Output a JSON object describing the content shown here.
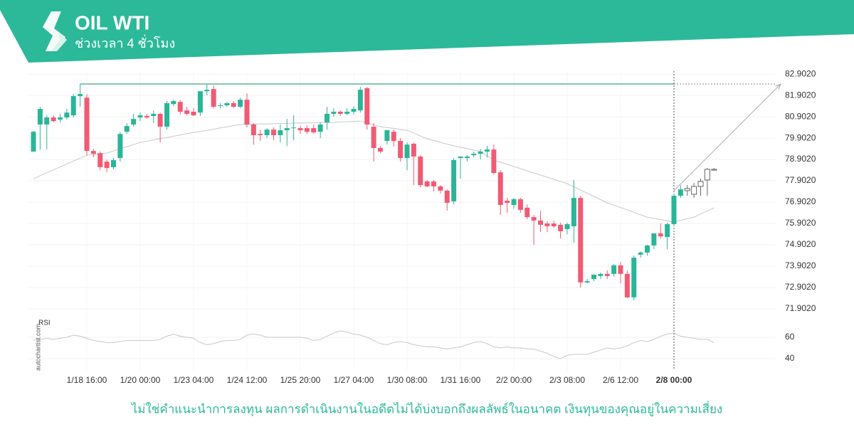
{
  "chart_data": {
    "type": "candlestick",
    "title": "OIL WTI",
    "subtitle": "ช่วงเวลา 4 ชั่วโมง",
    "watermark": "autochartist.com",
    "disclaimer": "ไม่ใช่คำแนะนำการลงทุน ผลการดำเนินงานในอดีตไม่ได้บ่งบอกถึงผลลัพธ์ในอนาคต เงินทุนของคุณอยู่ในความเสี่ยง",
    "categories": [
      null,
      null,
      null,
      null,
      null,
      null,
      null,
      null,
      "1/18 16:00",
      null,
      null,
      null,
      null,
      null,
      null,
      null,
      "1/20 00:00",
      null,
      null,
      null,
      null,
      null,
      null,
      null,
      "1/23 04:00",
      null,
      null,
      null,
      null,
      null,
      null,
      null,
      "1/24 12:00",
      null,
      null,
      null,
      null,
      null,
      null,
      null,
      "1/25 20:00",
      null,
      null,
      null,
      null,
      null,
      null,
      null,
      "1/27 04:00",
      null,
      null,
      null,
      null,
      null,
      null,
      null,
      "1/30 08:00",
      null,
      null,
      null,
      null,
      null,
      null,
      null,
      "1/31 16:00",
      null,
      null,
      null,
      null,
      null,
      null,
      null,
      "2/2 00:00",
      null,
      null,
      null,
      null,
      null,
      null,
      null,
      "2/3 08:00",
      null,
      null,
      null,
      null,
      null,
      null,
      null,
      "2/6 12:00",
      null,
      null,
      null,
      null,
      null,
      null,
      null,
      "2/8 00:00",
      null,
      null,
      null,
      null,
      null,
      null
    ],
    "candles": [
      [
        79.27,
        80.24,
        79.27,
        80.2
      ],
      [
        80.54,
        81.37,
        79.37,
        81.27
      ],
      [
        80.54,
        80.97,
        79.37,
        80.87
      ],
      [
        80.87,
        80.97,
        80.64,
        80.7
      ],
      [
        80.77,
        81.04,
        80.64,
        80.87
      ],
      [
        80.87,
        81.27,
        80.77,
        81.1
      ],
      [
        80.97,
        81.97,
        80.87,
        81.87
      ],
      [
        81.87,
        82.44,
        81.37,
        81.97
      ],
      [
        81.8,
        81.97,
        79.1,
        79.3
      ],
      [
        79.3,
        79.4,
        79.0,
        79.17
      ],
      [
        79.2,
        79.27,
        78.4,
        78.54
      ],
      [
        78.8,
        78.9,
        78.3,
        78.5
      ],
      [
        78.54,
        78.97,
        78.44,
        78.87
      ],
      [
        78.97,
        80.2,
        78.8,
        80.1
      ],
      [
        80.2,
        80.6,
        80.1,
        80.47
      ],
      [
        80.54,
        81.04,
        80.44,
        80.8
      ],
      [
        80.87,
        81.1,
        80.7,
        80.97
      ],
      [
        80.94,
        81.04,
        80.8,
        80.87
      ],
      [
        80.94,
        81.2,
        80.6,
        81.04
      ],
      [
        81.04,
        81.1,
        79.7,
        80.44
      ],
      [
        80.44,
        81.64,
        80.3,
        81.54
      ],
      [
        81.5,
        81.7,
        81.4,
        81.64
      ],
      [
        81.6,
        81.7,
        81.0,
        81.14
      ],
      [
        81.2,
        81.37,
        80.97,
        81.04
      ],
      [
        81.14,
        81.3,
        80.94,
        80.97
      ],
      [
        81.1,
        82.1,
        80.94,
        82.1
      ],
      [
        82.1,
        82.44,
        81.9,
        82.17
      ],
      [
        82.2,
        82.37,
        81.3,
        81.37
      ],
      [
        81.44,
        81.54,
        81.3,
        81.44
      ],
      [
        81.44,
        81.6,
        81.37,
        81.54
      ],
      [
        81.54,
        81.64,
        81.3,
        81.37
      ],
      [
        81.37,
        81.8,
        81.3,
        81.7
      ],
      [
        81.7,
        82.0,
        80.4,
        80.54
      ],
      [
        80.54,
        80.6,
        79.6,
        80.04
      ],
      [
        80.1,
        80.3,
        79.77,
        80.04
      ],
      [
        80.04,
        80.37,
        79.9,
        80.3
      ],
      [
        80.3,
        80.4,
        79.8,
        80.04
      ],
      [
        80.04,
        80.54,
        79.7,
        80.27
      ],
      [
        80.27,
        80.8,
        79.54,
        80.37
      ],
      [
        80.37,
        80.97,
        79.8,
        80.4
      ],
      [
        80.37,
        80.47,
        80.1,
        80.27
      ],
      [
        80.37,
        80.5,
        80.1,
        80.2
      ],
      [
        80.37,
        80.54,
        80.1,
        80.17
      ],
      [
        80.2,
        80.64,
        79.9,
        80.54
      ],
      [
        80.64,
        81.37,
        80.3,
        81.04
      ],
      [
        81.04,
        81.3,
        80.9,
        81.14
      ],
      [
        81.14,
        81.2,
        80.94,
        81.04
      ],
      [
        81.04,
        81.3,
        80.97,
        81.14
      ],
      [
        81.14,
        81.4,
        81.0,
        81.27
      ],
      [
        81.2,
        82.3,
        81.1,
        82.17
      ],
      [
        82.24,
        82.3,
        80.3,
        80.54
      ],
      [
        80.44,
        80.6,
        78.8,
        79.44
      ],
      [
        79.44,
        79.54,
        79.2,
        79.27
      ],
      [
        79.77,
        80.3,
        79.6,
        80.27
      ],
      [
        80.2,
        80.3,
        79.5,
        79.77
      ],
      [
        79.77,
        79.9,
        78.8,
        78.97
      ],
      [
        78.97,
        79.7,
        78.4,
        79.6
      ],
      [
        79.64,
        79.7,
        77.7,
        79.04
      ],
      [
        79.04,
        79.1,
        77.6,
        77.7
      ],
      [
        77.87,
        77.94,
        77.6,
        77.64
      ],
      [
        77.87,
        77.94,
        77.4,
        77.64
      ],
      [
        77.64,
        77.7,
        77.3,
        77.44
      ],
      [
        77.44,
        77.5,
        76.5,
        76.87
      ],
      [
        76.94,
        78.97,
        76.8,
        78.87
      ],
      [
        78.97,
        79.04,
        78.0,
        79.04
      ],
      [
        78.97,
        79.1,
        78.8,
        79.04
      ],
      [
        79.1,
        79.27,
        79.0,
        79.17
      ],
      [
        79.17,
        79.4,
        78.9,
        79.27
      ],
      [
        79.27,
        79.54,
        79.0,
        79.37
      ],
      [
        79.37,
        79.6,
        78.2,
        78.27
      ],
      [
        78.3,
        78.4,
        76.3,
        76.77
      ],
      [
        76.97,
        77.1,
        76.4,
        76.87
      ],
      [
        76.77,
        77.1,
        76.6,
        77.04
      ],
      [
        77.04,
        77.1,
        76.4,
        76.54
      ],
      [
        76.64,
        76.8,
        76.1,
        76.2
      ],
      [
        76.2,
        76.3,
        74.9,
        76.04
      ],
      [
        76.04,
        76.5,
        75.5,
        75.84
      ],
      [
        75.9,
        76.0,
        75.5,
        75.77
      ],
      [
        75.9,
        76.04,
        75.7,
        75.77
      ],
      [
        75.84,
        75.94,
        75.2,
        75.54
      ],
      [
        75.64,
        75.94,
        75.4,
        75.87
      ],
      [
        75.77,
        77.94,
        75.0,
        77.1
      ],
      [
        77.1,
        77.2,
        72.9,
        73.14
      ],
      [
        73.14,
        73.3,
        73.1,
        73.2
      ],
      [
        73.3,
        73.54,
        73.2,
        73.5
      ],
      [
        73.44,
        73.6,
        73.3,
        73.54
      ],
      [
        73.54,
        73.7,
        73.3,
        73.44
      ],
      [
        73.54,
        74.0,
        73.4,
        73.94
      ],
      [
        73.94,
        74.1,
        73.1,
        73.54
      ],
      [
        73.54,
        73.7,
        72.4,
        72.44
      ],
      [
        72.44,
        74.4,
        72.3,
        74.3
      ],
      [
        74.44,
        74.6,
        74.3,
        74.54
      ],
      [
        74.54,
        74.9,
        74.4,
        74.87
      ],
      [
        74.87,
        75.44,
        74.7,
        75.44
      ],
      [
        75.44,
        75.9,
        75.2,
        75.3
      ],
      [
        75.27,
        75.94,
        74.7,
        75.87
      ],
      [
        75.87,
        77.3,
        75.8,
        77.2
      ],
      [
        77.2,
        77.7,
        77.1,
        77.5
      ],
      [
        77.44,
        77.7,
        77.2,
        77.54
      ],
      [
        77.27,
        77.8,
        77.1,
        77.64
      ],
      [
        77.64,
        78.0,
        77.2,
        77.87
      ],
      [
        77.94,
        78.5,
        77.2,
        78.44
      ],
      [
        78.44,
        78.5,
        78.4,
        78.4
      ]
    ],
    "up_color": "#2bb598",
    "down_color": "#f25a73",
    "hollow_from": 98,
    "ylim": [
      71.7,
      83.04
    ],
    "yticks": [
      {
        "value": 82.902,
        "label": "82.9020"
      },
      {
        "value": 81.902,
        "label": "81.9020"
      },
      {
        "value": 80.902,
        "label": "80.9020"
      },
      {
        "value": 79.902,
        "label": "79.9020"
      },
      {
        "value": 78.902,
        "label": "78.9020"
      },
      {
        "value": 77.902,
        "label": "77.9020"
      },
      {
        "value": 76.902,
        "label": "76.9020"
      },
      {
        "value": 75.902,
        "label": "75.9020"
      },
      {
        "value": 74.902,
        "label": "74.9020"
      },
      {
        "value": 73.902,
        "label": "73.9020"
      },
      {
        "value": 72.902,
        "label": "72.9020"
      },
      {
        "value": 71.902,
        "label": "71.9020"
      }
    ],
    "grid": true,
    "resistance": 82.44,
    "resistance_color": "#5fb58f",
    "projection": [
      77.44,
      82.44
    ],
    "ma": {
      "color": "#c8c8c8",
      "values": [
        78.0,
        78.14,
        78.28,
        78.41,
        78.55,
        78.69,
        78.83,
        78.96,
        79.1,
        79.13,
        79.17,
        79.2,
        79.3,
        79.4,
        79.5,
        79.6,
        79.7,
        79.76,
        79.82,
        79.88,
        79.93,
        79.99,
        80.05,
        80.11,
        80.16,
        80.22,
        80.27,
        80.32,
        80.38,
        80.43,
        80.49,
        80.54,
        80.55,
        80.56,
        80.57,
        80.57,
        80.58,
        80.59,
        80.6,
        80.61,
        80.61,
        80.62,
        80.62,
        80.63,
        80.63,
        80.64,
        80.66,
        80.67,
        80.69,
        80.7,
        80.61,
        80.53,
        80.44,
        80.4,
        80.36,
        80.31,
        80.27,
        80.14,
        80.0,
        79.87,
        79.79,
        79.7,
        79.62,
        79.54,
        79.47,
        79.41,
        79.34,
        79.27,
        79.07,
        78.87,
        78.77,
        78.67,
        78.57,
        78.47,
        78.37,
        78.27,
        78.17,
        78.07,
        77.97,
        77.87,
        77.77,
        77.62,
        77.47,
        77.32,
        77.17,
        77.02,
        76.87,
        76.76,
        76.65,
        76.54,
        76.42,
        76.31,
        76.2,
        76.14,
        76.09,
        76.03,
        75.97,
        76.05,
        76.12,
        76.2,
        76.35,
        76.49,
        76.64
      ]
    },
    "rsi": {
      "label": "RSI",
      "color": "#c8c8c8",
      "ylim": [
        29.3,
        79.3
      ],
      "yticks": [
        60,
        40
      ],
      "values": [
        57,
        58,
        59,
        58,
        59,
        60,
        62,
        61,
        59,
        57,
        56,
        55,
        55,
        56,
        57,
        57,
        57,
        57,
        57,
        58,
        61,
        63,
        61,
        60,
        59,
        55,
        53,
        54,
        56,
        57,
        57,
        58,
        62,
        63,
        62,
        60,
        60,
        60,
        60,
        60,
        60,
        59,
        57,
        58,
        61,
        64,
        66,
        65,
        63,
        62,
        60,
        57,
        54,
        53,
        55,
        56,
        55,
        53,
        52,
        51,
        51,
        50,
        49,
        50,
        51,
        53,
        55,
        56,
        54,
        51,
        50,
        51,
        50,
        50,
        49,
        49,
        47,
        45,
        42,
        40,
        43,
        44,
        44,
        44,
        46,
        48,
        50,
        49,
        50,
        52,
        55,
        57,
        56,
        58,
        61,
        63,
        64,
        61,
        60,
        59,
        58,
        58,
        55
      ]
    }
  }
}
